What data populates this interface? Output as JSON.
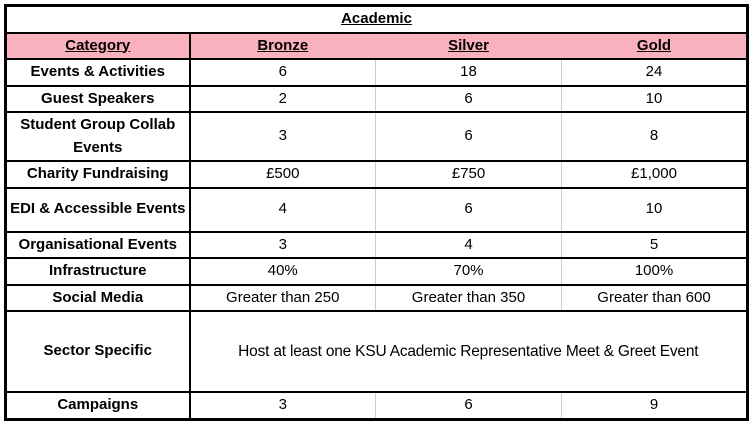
{
  "chart_data": {
    "type": "table",
    "title": "Academic",
    "columns": [
      "Category",
      "Bronze",
      "Silver",
      "Gold"
    ],
    "rows": [
      {
        "category": "Events & Activities",
        "bronze": "6",
        "silver": "18",
        "gold": "24"
      },
      {
        "category": "Guest Speakers",
        "bronze": "2",
        "silver": "6",
        "gold": "10"
      },
      {
        "category": "Student Group Collab Events",
        "bronze": "3",
        "silver": "6",
        "gold": "8"
      },
      {
        "category": "Charity Fundraising",
        "bronze": "£500",
        "silver": "£750",
        "gold": "£1,000"
      },
      {
        "category": "EDI & Accessible Events",
        "bronze": "4",
        "silver": "6",
        "gold": "10"
      },
      {
        "category": "Organisational Events",
        "bronze": "3",
        "silver": "4",
        "gold": "5"
      },
      {
        "category": "Infrastructure",
        "bronze": "40%",
        "silver": "70%",
        "gold": "100%"
      },
      {
        "category": "Social Media",
        "bronze": "Greater than 250",
        "silver": "Greater than 350",
        "gold": "Greater than 600"
      },
      {
        "category": "Sector Specific",
        "merged": "Host at least one KSU Academic Representative Meet & Greet Event"
      },
      {
        "category": "Campaigns",
        "bronze": "3",
        "silver": "6",
        "gold": "9"
      }
    ],
    "layout": {
      "grid": "thick black horizontal rules, thin gray vertical gridlines between value columns",
      "merged_row_span": "Sector Specific value spans Bronze–Gold"
    }
  },
  "colors": {
    "header_bg": "#FAB1BE",
    "gridline": "#CCCCCC",
    "border": "#000000",
    "background": "#FFFFFF",
    "text": "#000000"
  }
}
